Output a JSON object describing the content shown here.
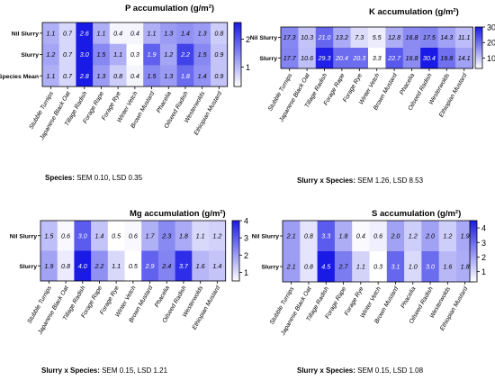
{
  "colors": {
    "low": "#ffffff",
    "high": "#1a1ae6",
    "text": "#000000"
  },
  "categories": [
    "Stubble Turnips",
    "Japanese Black Oat",
    "Tillage Radish",
    "Forage Rape",
    "Forage Rye",
    "Winter Vetch",
    "Brown Mustard",
    "Phacelia",
    "Oilseed Radish",
    "Westerwolds",
    "Ethiopian Mustard"
  ],
  "footnotes": [
    {
      "bold": "Species:",
      "rest": " SEM 0.10, LSD 0.35"
    },
    {
      "bold": "Slurry x Species:",
      "rest": " SEM 1.26, LSD 8.53"
    },
    {
      "bold": "Slurry x Species:",
      "rest": " SEM 0.15, LSD 1.21"
    },
    {
      "bold": "Slurry x Species:",
      "rest": " SEM 0.15, LSD 1.08"
    }
  ],
  "chart_data": [
    {
      "type": "heatmap",
      "title": "P accumulation (g/m²)",
      "rows": [
        "Nil Slurry",
        "Slurry",
        "Species Mean"
      ],
      "values": [
        [
          1.1,
          0.7,
          2.6,
          1.1,
          0.4,
          0.4,
          1.1,
          1.3,
          1.4,
          1.3,
          0.8
        ],
        [
          1.2,
          0.7,
          3.0,
          1.5,
          1.1,
          0.3,
          1.9,
          1.2,
          2.2,
          1.5,
          0.9
        ],
        [
          1.1,
          0.7,
          2.8,
          1.3,
          0.8,
          0.4,
          1.5,
          1.3,
          1.8,
          1.4,
          0.9
        ]
      ],
      "colorbar": {
        "min": 0.3,
        "max": 2.6,
        "ticks": [
          2,
          1
        ]
      }
    },
    {
      "type": "heatmap",
      "title": "K accumulation (g/m²)",
      "rows": [
        "Nil Slurry",
        "Slurry"
      ],
      "values": [
        [
          17.3,
          10.3,
          21.0,
          13.2,
          7.3,
          5.5,
          12.8,
          16.8,
          17.5,
          14.3,
          11.1
        ],
        [
          17.7,
          10.6,
          29.3,
          20.4,
          20.3,
          3.3,
          22.7,
          16.8,
          30.4,
          19.8,
          14.1
        ]
      ],
      "colorbar": {
        "min": 3.3,
        "max": 30,
        "ticks": [
          30,
          20,
          10
        ]
      }
    },
    {
      "type": "heatmap",
      "title": "Mg accumulation (g/m²)",
      "rows": [
        "Nil Slurry",
        "Slurry"
      ],
      "values": [
        [
          1.5,
          0.6,
          3.0,
          1.4,
          0.5,
          0.6,
          1.7,
          2.3,
          1.8,
          1.1,
          1.2
        ],
        [
          1.9,
          0.8,
          4.0,
          2.2,
          1.1,
          0.5,
          2.9,
          2.4,
          3.7,
          1.6,
          1.4
        ]
      ],
      "colorbar": {
        "min": 0.5,
        "max": 4,
        "ticks": [
          4,
          3,
          2,
          1
        ]
      }
    },
    {
      "type": "heatmap",
      "title": "S accumulation (g/m²)",
      "rows": [
        "Nil Slurry",
        "Slurry"
      ],
      "values": [
        [
          2.1,
          0.8,
          3.3,
          1.8,
          0.4,
          0.6,
          2.0,
          1.2,
          2.0,
          1.2,
          1.9
        ],
        [
          2.1,
          0.8,
          4.5,
          2.7,
          1.1,
          0.3,
          3.1,
          1.0,
          3.0,
          1.6,
          1.8
        ]
      ],
      "colorbar": {
        "min": 0.3,
        "max": 4.5,
        "ticks": [
          4,
          3,
          2,
          1
        ]
      }
    }
  ]
}
